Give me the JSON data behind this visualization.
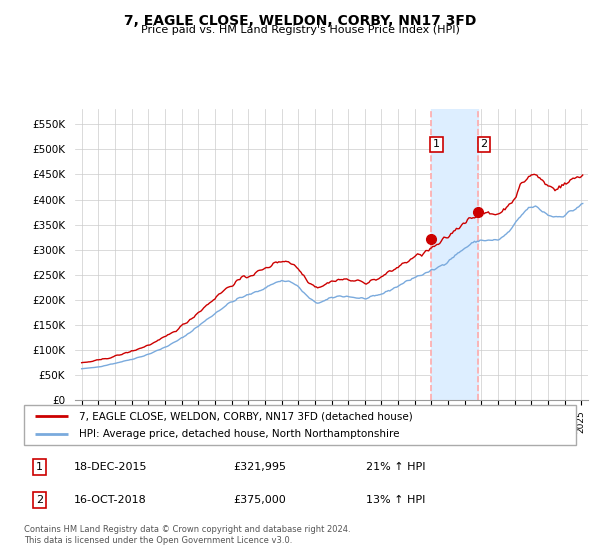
{
  "title": "7, EAGLE CLOSE, WELDON, CORBY, NN17 3FD",
  "subtitle": "Price paid vs. HM Land Registry's House Price Index (HPI)",
  "ylabel_ticks": [
    "£0",
    "£50K",
    "£100K",
    "£150K",
    "£200K",
    "£250K",
    "£300K",
    "£350K",
    "£400K",
    "£450K",
    "£500K",
    "£550K"
  ],
  "ytick_values": [
    0,
    50000,
    100000,
    150000,
    200000,
    250000,
    300000,
    350000,
    400000,
    450000,
    500000,
    550000
  ],
  "ylim": [
    0,
    580000
  ],
  "legend_line1": "7, EAGLE CLOSE, WELDON, CORBY, NN17 3FD (detached house)",
  "legend_line2": "HPI: Average price, detached house, North Northamptonshire",
  "annotation1_label": "1",
  "annotation1_date": "18-DEC-2015",
  "annotation1_price": "£321,995",
  "annotation1_hpi": "21% ↑ HPI",
  "annotation2_label": "2",
  "annotation2_date": "16-OCT-2018",
  "annotation2_price": "£375,000",
  "annotation2_hpi": "13% ↑ HPI",
  "footer": "Contains HM Land Registry data © Crown copyright and database right 2024.\nThis data is licensed under the Open Government Licence v3.0.",
  "sale1_year": 2015.96,
  "sale1_value": 321995,
  "sale2_year": 2018.79,
  "sale2_value": 375000,
  "hpi_line_color": "#7aaadd",
  "price_paid_color": "#cc0000",
  "shade_color": "#ddeeff",
  "vline_color": "#ffaaaa"
}
